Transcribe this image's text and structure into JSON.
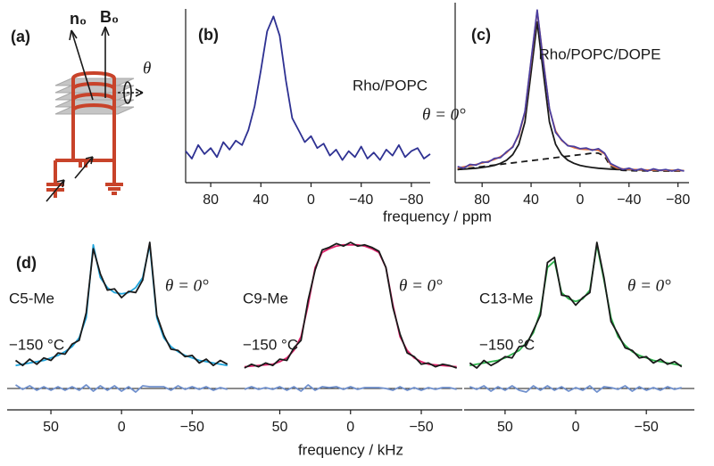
{
  "diagram": {
    "label": "(a)",
    "vector_n": "n₀",
    "vector_b": "B₀",
    "angle": "θ"
  },
  "ppm_xlabel": "frequency / ppm",
  "khz_xlabel": "frequency / kHz",
  "chart_data": [
    {
      "type": "line",
      "label": "(b)",
      "annotation": "Rho/POPC",
      "x": [
        100,
        95,
        90,
        85,
        80,
        75,
        70,
        65,
        60,
        55,
        50,
        45,
        40,
        35,
        30,
        25,
        20,
        15,
        10,
        5,
        0,
        -5,
        -10,
        -15,
        -20,
        -25,
        -30,
        -35,
        -40,
        -45,
        -50,
        -55,
        -60,
        -65,
        -70,
        -75,
        -80,
        -85,
        -90,
        -95
      ],
      "series": [
        {
          "color": "#2e3192",
          "values": [
            8,
            3,
            12,
            6,
            10,
            4,
            14,
            9,
            15,
            12,
            22,
            38,
            62,
            88,
            98,
            85,
            55,
            30,
            22,
            14,
            18,
            10,
            13,
            5,
            9,
            2,
            8,
            4,
            11,
            3,
            7,
            2,
            9,
            5,
            12,
            4,
            8,
            10,
            3,
            6
          ]
        }
      ],
      "xlim": [
        100,
        -95
      ],
      "xticks": [
        80,
        40,
        0,
        {
          "value": -40,
          "label": "−40"
        },
        {
          "value": -80,
          "label": "−80"
        }
      ],
      "ylim": [
        0,
        100
      ]
    },
    {
      "type": "line",
      "label": "(c)",
      "annotation": "Rho/POPC/DOPE",
      "angle": "θ = 0°",
      "x": [
        100,
        95,
        90,
        85,
        80,
        75,
        70,
        65,
        60,
        55,
        50,
        45,
        40,
        35,
        30,
        25,
        20,
        15,
        10,
        5,
        0,
        -5,
        -10,
        -15,
        -20,
        -25,
        -30,
        -35,
        -40,
        -45,
        -50,
        -55,
        -60,
        -65,
        -70,
        -75,
        -80,
        -85
      ],
      "series": [
        {
          "color": "#1a1a1a",
          "dash": true,
          "values": [
            1,
            1.5,
            2,
            2.5,
            3,
            3.5,
            4,
            4.5,
            5,
            5.5,
            6,
            6.5,
            7,
            7.5,
            8,
            8.5,
            9,
            9.5,
            10,
            10.5,
            11,
            11.5,
            12,
            12,
            10,
            3,
            1,
            0.5,
            0.3,
            0.2,
            0.2,
            0.1,
            0.1,
            0.1,
            0,
            0,
            0,
            0
          ]
        },
        {
          "color": "#1a1a1a",
          "values": [
            1.1,
            1.3,
            1.6,
            1.9,
            2.4,
            3.0,
            3.8,
            5.2,
            7.3,
            11,
            18,
            33,
            66,
            100,
            66,
            33,
            18,
            11,
            7.3,
            5.2,
            3.8,
            3.0,
            2.4,
            1.9,
            1.6,
            1.3,
            1.1,
            1.0,
            0.9,
            0.8,
            0.7,
            0.6,
            0.6,
            0.5,
            0.5,
            0.4,
            0.4,
            0.3
          ]
        },
        {
          "color": "#e8743b",
          "values": [
            2.1,
            2.8,
            3.6,
            4.4,
            5.4,
            6.5,
            7.8,
            9.7,
            12.3,
            16.5,
            24,
            39.5,
            73,
            107.5,
            74,
            41.5,
            27,
            20.5,
            17.3,
            15.7,
            14.8,
            14.5,
            14.4,
            13.9,
            11.6,
            4.3,
            2.1,
            1.5,
            1.2,
            1.0,
            0.9,
            0.7,
            0.7,
            0.6,
            0.5,
            0.4,
            0.4,
            0.3
          ]
        },
        {
          "color": "#4b3fa0",
          "values": [
            3,
            2,
            4.5,
            4,
            6,
            6,
            8.5,
            9,
            13,
            16,
            25,
            40,
            74,
            108,
            73,
            42,
            26,
            21,
            17,
            16.5,
            15,
            15.5,
            14,
            15,
            12,
            5,
            3,
            1,
            2,
            0.5,
            1.5,
            0,
            1.5,
            0.5,
            1,
            0,
            1,
            0
          ]
        }
      ],
      "xlim": [
        102,
        -89
      ],
      "xticks": [
        80,
        40,
        0,
        {
          "value": -40,
          "label": "−40"
        },
        {
          "value": -80,
          "label": "−80"
        }
      ],
      "ylim": [
        0,
        110
      ]
    },
    {
      "type": "line",
      "label": "(d)",
      "sample": "C5-Me",
      "temperature": "−150 °C",
      "angle": "θ = 0°",
      "x": [
        75,
        70,
        65,
        60,
        55,
        50,
        45,
        40,
        35,
        30,
        25,
        20,
        15,
        10,
        5,
        0,
        -5,
        -10,
        -15,
        -20,
        -25,
        -30,
        -35,
        -40,
        -45,
        -50,
        -55,
        -60,
        -65,
        -70,
        -75
      ],
      "series": [
        {
          "color": "#1ea5dd",
          "values": [
            2,
            3,
            4,
            5,
            6,
            8,
            10,
            13,
            17,
            24,
            40,
            98,
            72,
            64,
            60,
            59,
            60,
            64,
            72,
            98,
            40,
            24,
            17,
            13,
            10,
            8,
            6,
            5,
            4,
            3,
            2
          ]
        },
        {
          "color": "#1a1a1a",
          "values": [
            6,
            2,
            7,
            3,
            8,
            6,
            12,
            11,
            19,
            22,
            44,
            95,
            75,
            62,
            63,
            56,
            61,
            60,
            70,
            100,
            42,
            26,
            15,
            14,
            9,
            10,
            4,
            7,
            2,
            6,
            3
          ]
        },
        {
          "color": "#7090cc",
          "axis": "y2",
          "values": [
            4,
            -1,
            3,
            -2,
            2,
            -2,
            2,
            -2,
            2,
            -2,
            4,
            -3,
            3,
            -2,
            3,
            -3,
            2,
            -4,
            3,
            2,
            2,
            2,
            -2,
            3,
            -1,
            2,
            -1,
            2,
            -2,
            1,
            -1
          ]
        }
      ],
      "xlim": [
        81,
        -77
      ],
      "xticks": [
        50,
        0,
        {
          "value": -50,
          "label": "−50"
        }
      ],
      "ylim": [
        0,
        100
      ],
      "y2lim": [
        -10,
        10
      ]
    },
    {
      "type": "line",
      "sample": "C9-Me",
      "temperature": "−150 °C",
      "angle": "θ = 0°",
      "x": [
        75,
        70,
        65,
        60,
        55,
        50,
        45,
        40,
        35,
        30,
        25,
        20,
        15,
        10,
        5,
        0,
        -5,
        -10,
        -15,
        -20,
        -25,
        -30,
        -35,
        -40,
        -45,
        -50,
        -55,
        -60,
        -65,
        -70,
        -75
      ],
      "series": [
        {
          "color": "#e0206a",
          "values": [
            1,
            1.5,
            2,
            2.5,
            3,
            5,
            8,
            14,
            25,
            50,
            80,
            92,
            95,
            97,
            98,
            98,
            98,
            97,
            95,
            92,
            80,
            50,
            25,
            14,
            8,
            5,
            3,
            2.5,
            2,
            1.5,
            1
          ]
        },
        {
          "color": "#1a1a1a",
          "values": [
            0,
            3,
            1,
            4,
            2,
            7,
            6,
            16,
            22,
            54,
            78,
            94,
            96,
            99,
            97,
            100,
            97,
            98,
            96,
            93,
            80,
            48,
            27,
            12,
            9,
            3,
            4,
            1,
            3,
            2,
            0
          ]
        },
        {
          "color": "#7090cc",
          "axis": "y2",
          "values": [
            -1,
            2,
            -1,
            1,
            -1,
            2,
            -2,
            2,
            -3,
            4,
            -2,
            2,
            1,
            2,
            -1,
            2,
            -1,
            1,
            1,
            1,
            0,
            -2,
            2,
            -2,
            1,
            -2,
            1,
            -1,
            1,
            1,
            -1
          ]
        }
      ],
      "xlim": [
        85,
        -79
      ],
      "xticks": [
        50,
        0,
        {
          "value": -50,
          "label": "−50"
        }
      ],
      "ylim": [
        0,
        100
      ],
      "y2lim": [
        -10,
        10
      ]
    },
    {
      "type": "line",
      "sample": "C13-Me",
      "temperature": "−150 °C",
      "angle": "θ = 0°",
      "x": [
        75,
        70,
        65,
        60,
        55,
        50,
        45,
        40,
        35,
        30,
        25,
        20,
        15,
        10,
        5,
        0,
        -5,
        -10,
        -15,
        -20,
        -25,
        -30,
        -35,
        -40,
        -45,
        -50,
        -55,
        -60,
        -65,
        -70,
        -75
      ],
      "series": [
        {
          "color": "#2bb34a",
          "values": [
            2,
            3,
            4,
            5,
            6,
            8,
            11,
            14,
            20,
            28,
            45,
            80,
            85,
            60,
            55,
            53,
            55,
            62,
            98,
            70,
            40,
            25,
            18,
            13,
            10,
            8,
            6,
            5,
            4,
            3,
            2
          ]
        },
        {
          "color": "#1a1a1a",
          "values": [
            4,
            0,
            6,
            2,
            5,
            9,
            8,
            17,
            18,
            30,
            42,
            84,
            88,
            58,
            57,
            50,
            56,
            60,
            100,
            72,
            37,
            27,
            16,
            14,
            8,
            9,
            4,
            7,
            3,
            5,
            1
          ]
        },
        {
          "color": "#7090cc",
          "axis": "y2",
          "values": [
            2,
            -1,
            3,
            -3,
            2,
            -2,
            3,
            -2,
            -4,
            3,
            -2,
            3,
            -2,
            2,
            -3,
            1,
            -2,
            3,
            -4,
            2,
            1,
            -1,
            3,
            -3,
            2,
            -2,
            1,
            -2,
            2,
            -1,
            1
          ]
        }
      ],
      "xlim": [
        79,
        -84
      ],
      "xticks": [
        50,
        0,
        {
          "value": -50,
          "label": "−50"
        }
      ],
      "ylim": [
        0,
        100
      ],
      "y2lim": [
        -10,
        10
      ]
    }
  ]
}
